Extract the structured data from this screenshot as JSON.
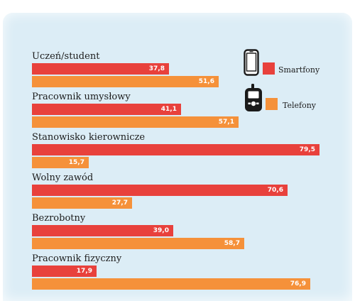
{
  "colors": {
    "smartfony": "#e8413c",
    "telefony": "#f5913a",
    "background": "#dcedf6"
  },
  "legend": [
    {
      "label": "Smartfony",
      "icon": "smartphone-icon",
      "color": "#e8413c"
    },
    {
      "label": "Telefony",
      "icon": "feature-phone-icon",
      "color": "#f5913a"
    }
  ],
  "chart_data": {
    "type": "bar",
    "orientation": "horizontal",
    "categories": [
      "Uczeń/student",
      "Pracownik umysłowy",
      "Stanowisko kierownicze",
      "Wolny zawód",
      "Bezrobotny",
      "Pracownik fizyczny"
    ],
    "series": [
      {
        "name": "Smartfony",
        "values": [
          "37,8",
          "41,1",
          "79,5",
          "70,6",
          "39,0",
          "17,9"
        ]
      },
      {
        "name": "Telefony",
        "values": [
          "51,6",
          "57,1",
          "15,7",
          "27,7",
          "58,7",
          "76,9"
        ]
      }
    ],
    "value_labels": true,
    "legend_position": "top-right",
    "grid": false
  }
}
